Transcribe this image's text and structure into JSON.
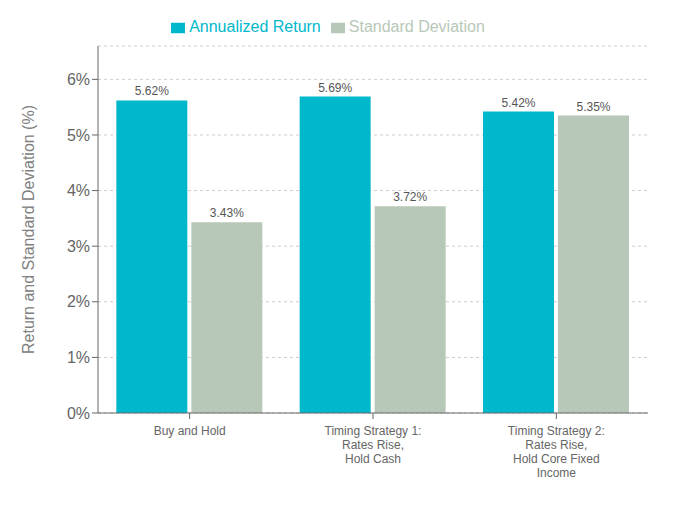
{
  "chart_data": {
    "type": "bar",
    "categories": [
      "Buy and Hold",
      "Timing Strategy 1:\nRates Rise,\nHold Cash",
      "Timing Strategy 2:\nRates Rise,\nHold Core Fixed\nIncome"
    ],
    "series": [
      {
        "name": "Annualized Return",
        "color": "#00B8CC",
        "values": [
          5.62,
          5.69,
          5.42
        ],
        "value_labels": [
          "5.62%",
          "5.69%",
          "5.42%"
        ]
      },
      {
        "name": "Standard Deviation",
        "color": "#B8C8B8",
        "values": [
          3.43,
          3.72,
          5.35
        ],
        "value_labels": [
          "3.43%",
          "3.72%",
          "5.35%"
        ]
      }
    ],
    "ylabel": "Return and Standard Deviation (%)",
    "ylim": [
      0,
      6.6
    ],
    "yticks": [
      {
        "value": 0,
        "label": "0%"
      },
      {
        "value": 1,
        "label": "1%"
      },
      {
        "value": 2,
        "label": "2%"
      },
      {
        "value": 3,
        "label": "3%"
      },
      {
        "value": 4,
        "label": "4%"
      },
      {
        "value": 5,
        "label": "5%"
      },
      {
        "value": 6,
        "label": "6%"
      }
    ],
    "grid": true,
    "legend": "top",
    "data_labels": true
  }
}
